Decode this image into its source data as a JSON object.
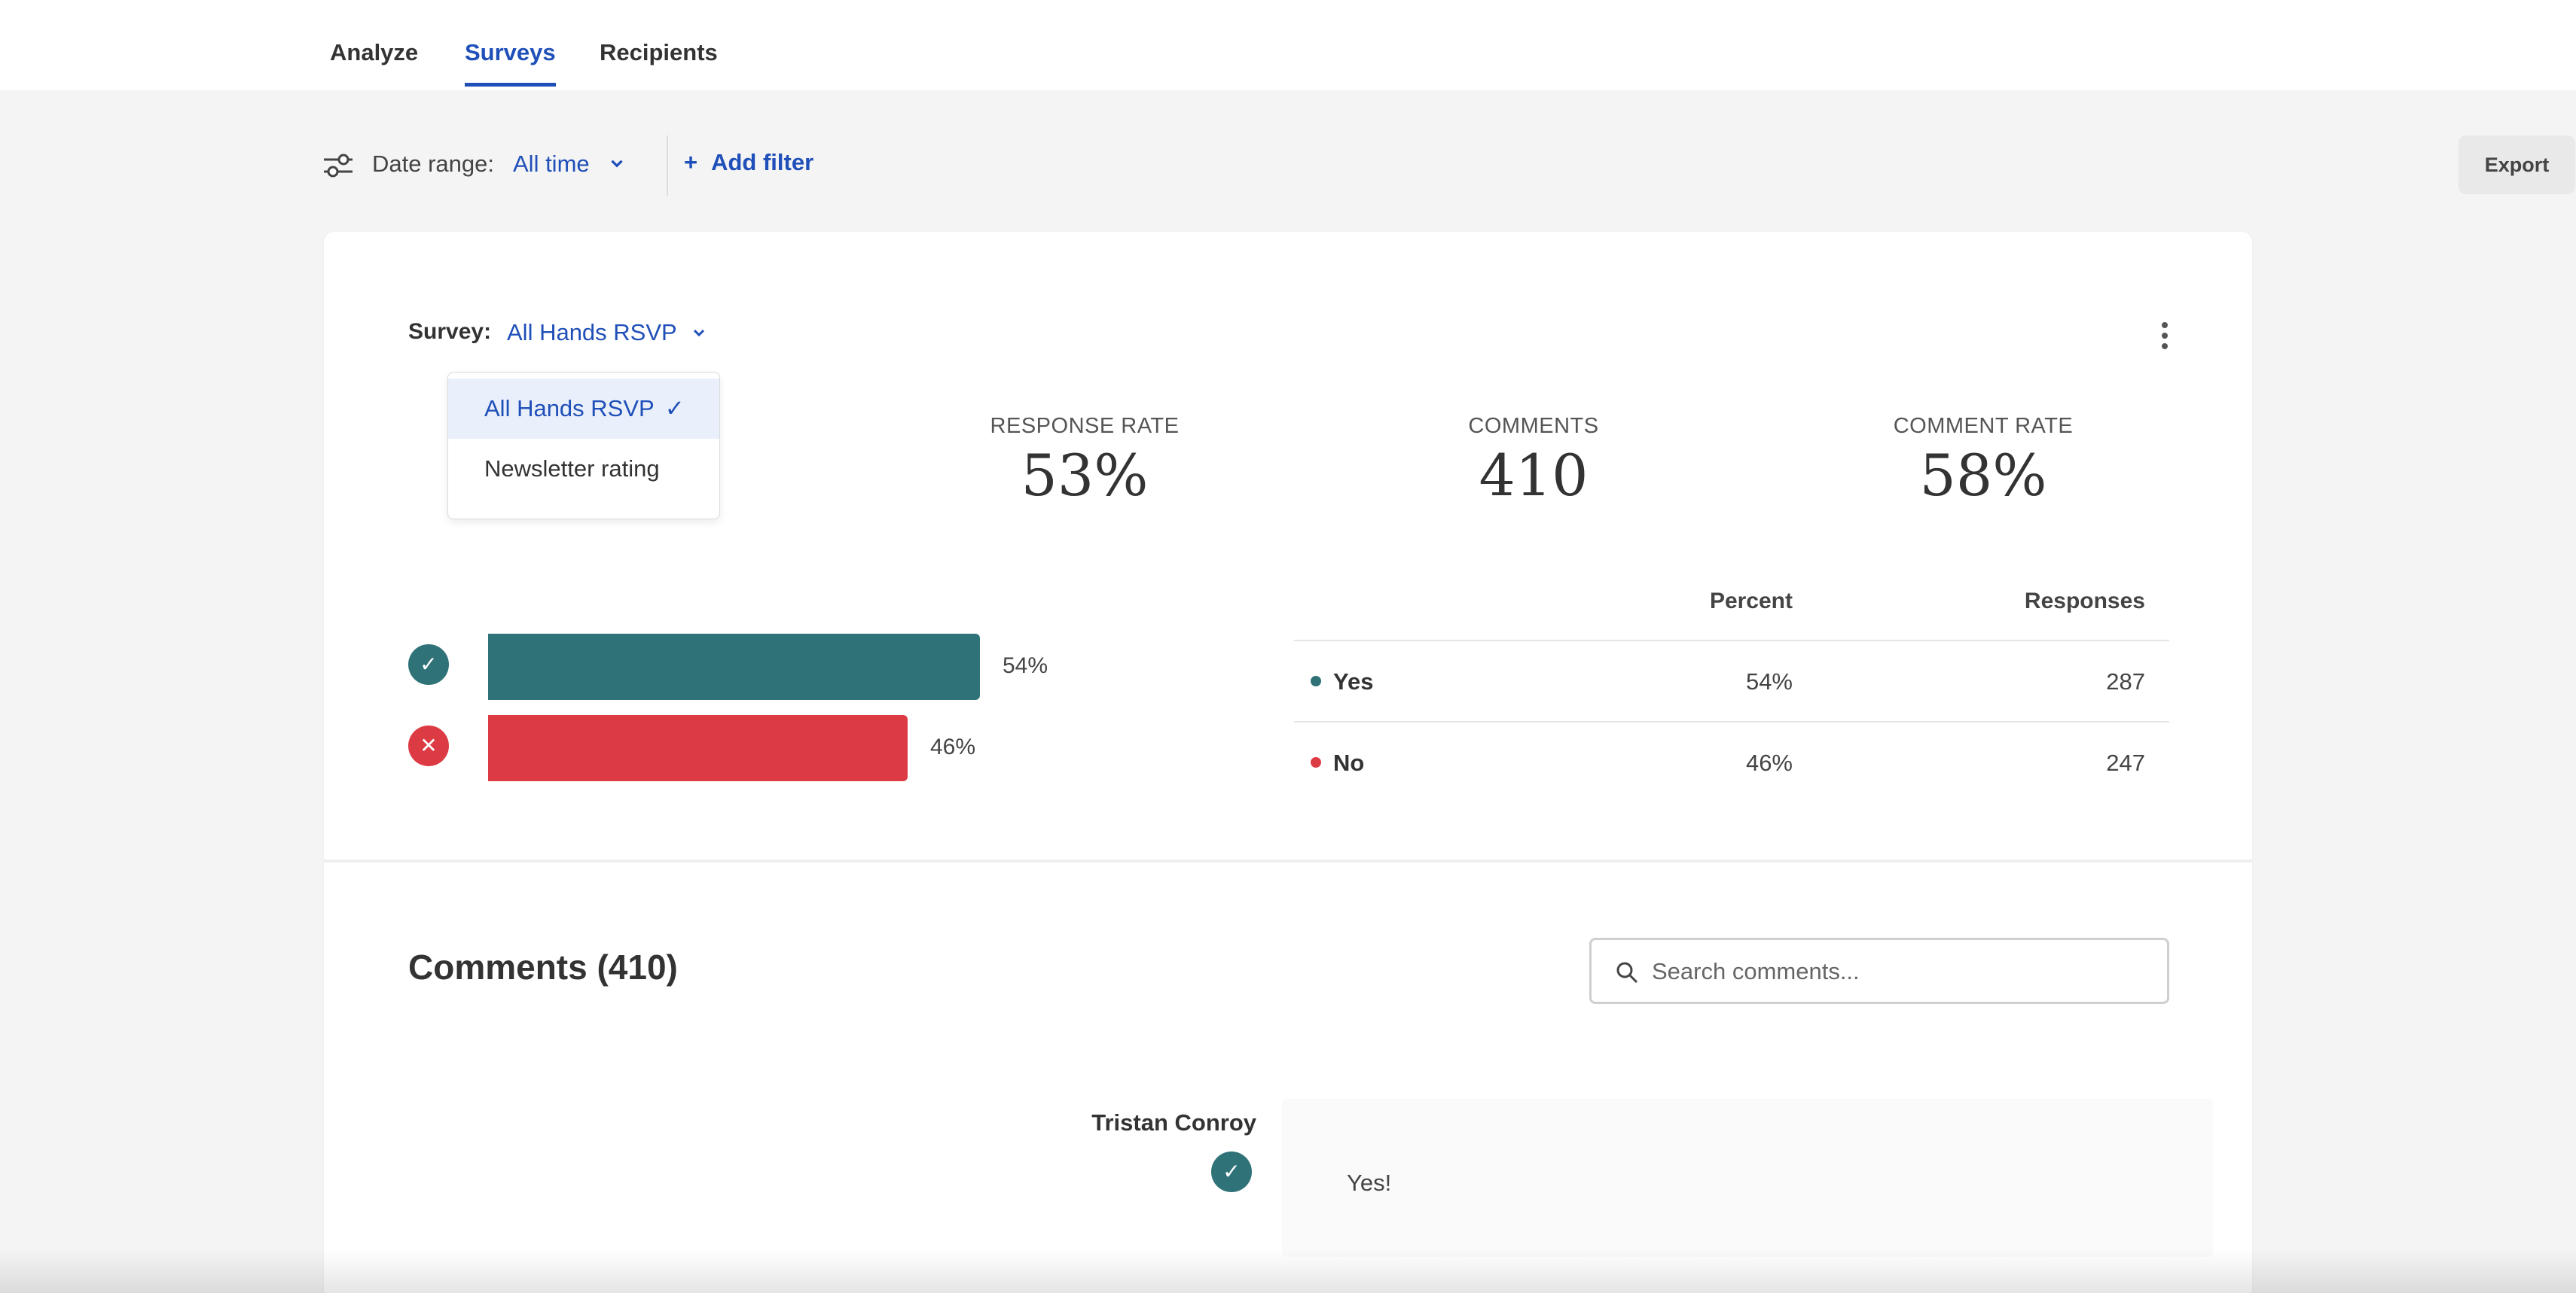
{
  "tabs": [
    {
      "label": "Analyze",
      "active": false
    },
    {
      "label": "Surveys",
      "active": true
    },
    {
      "label": "Recipients",
      "active": false
    }
  ],
  "filters": {
    "date_label": "Date range:",
    "date_value": "All time",
    "add_filter": "Add filter",
    "add_filter_prefix": "+",
    "export": "Export"
  },
  "survey": {
    "label": "Survey:",
    "selected": "All Hands RSVP",
    "options": [
      {
        "label": "All Hands RSVP",
        "selected": true,
        "check": "✓"
      },
      {
        "label": "Newsletter rating",
        "selected": false
      }
    ]
  },
  "stats": [
    {
      "label": "RESPONSE RATE",
      "value": "53%"
    },
    {
      "label": "COMMENTS",
      "value": "410"
    },
    {
      "label": "COMMENT RATE",
      "value": "58%"
    }
  ],
  "colors": {
    "accent": "#1f4fb8",
    "yes": "#2f7378",
    "no": "#dd3b44"
  },
  "chart_data": {
    "type": "bar",
    "orientation": "horizontal",
    "categories": [
      "Yes",
      "No"
    ],
    "values": [
      54,
      46
    ],
    "value_labels": [
      "54%",
      "46%"
    ],
    "colors": [
      "#2f7378",
      "#dd3b44"
    ]
  },
  "table": {
    "headers": {
      "answer": "",
      "percent": "Percent",
      "responses": "Responses"
    },
    "rows": [
      {
        "answer": "Yes",
        "percent": "54%",
        "responses": "287",
        "color": "#2f7378"
      },
      {
        "answer": "No",
        "percent": "46%",
        "responses": "247",
        "color": "#dd3b44"
      }
    ]
  },
  "comments": {
    "title": "Comments (410)",
    "search_placeholder": "Search comments...",
    "items": [
      {
        "author": "Tristan Conroy",
        "answer": "yes",
        "text": "Yes!"
      }
    ]
  },
  "icons": {
    "yes": "✓",
    "no": "✕"
  }
}
